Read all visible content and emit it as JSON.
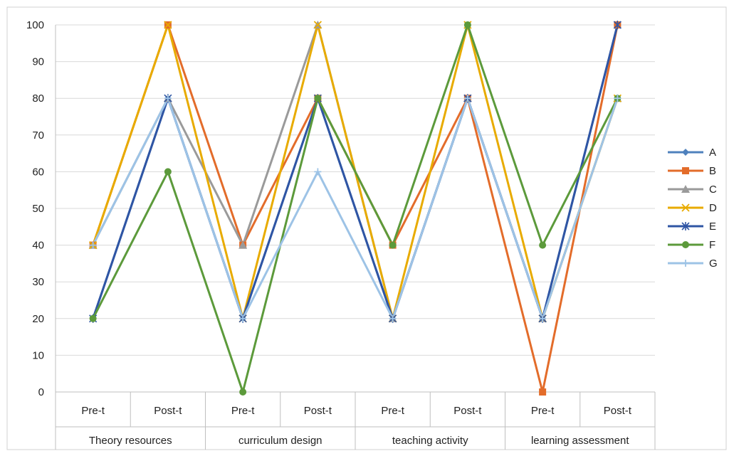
{
  "chart_data": {
    "type": "line",
    "title": "",
    "xlabel": "",
    "ylabel": "",
    "ylim": [
      0,
      100
    ],
    "yticks": [
      0,
      10,
      20,
      30,
      40,
      50,
      60,
      70,
      80,
      90,
      100
    ],
    "grid": "horizontal",
    "legend_position": "right",
    "categories": [
      "Pre-t",
      "Post-t",
      "Pre-t",
      "Post-t",
      "Pre-t",
      "Post-t",
      "Pre-t",
      "Post-t"
    ],
    "groups": [
      {
        "label": "Theory resources",
        "span": 2
      },
      {
        "label": "curriculum design",
        "span": 2
      },
      {
        "label": "teaching activity",
        "span": 2
      },
      {
        "label": "learning assessment",
        "span": 2
      }
    ],
    "series": [
      {
        "name": "A",
        "color": "#4f81bd",
        "marker": "diamond",
        "values": [
          20,
          80,
          20,
          80,
          20,
          80,
          20,
          100
        ]
      },
      {
        "name": "B",
        "color": "#e36c2a",
        "marker": "square",
        "values": [
          40,
          100,
          40,
          80,
          40,
          80,
          0,
          100
        ]
      },
      {
        "name": "C",
        "color": "#9a9a9a",
        "marker": "triangle",
        "values": [
          40,
          80,
          40,
          100,
          20,
          80,
          20,
          80
        ]
      },
      {
        "name": "D",
        "color": "#e8ab00",
        "marker": "x",
        "values": [
          40,
          100,
          20,
          100,
          20,
          100,
          20,
          80
        ]
      },
      {
        "name": "E",
        "color": "#2f55a4",
        "marker": "star",
        "values": [
          20,
          80,
          20,
          80,
          20,
          80,
          20,
          100
        ]
      },
      {
        "name": "F",
        "color": "#5c9a3b",
        "marker": "circle",
        "values": [
          20,
          60,
          0,
          80,
          40,
          100,
          40,
          80
        ]
      },
      {
        "name": "G",
        "color": "#9dc3e6",
        "marker": "plus",
        "values": [
          40,
          80,
          20,
          60,
          20,
          80,
          20,
          80
        ]
      }
    ]
  }
}
